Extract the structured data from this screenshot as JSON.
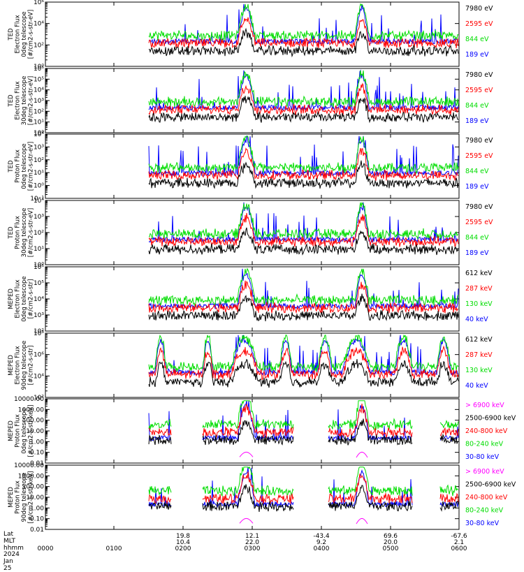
{
  "chart_data": [
    {
      "type": "line",
      "ylabel": [
        "TED",
        "Electron Flux",
        "0deg telescope",
        "[#/cm2-s-str-eV]"
      ],
      "yticks": [
        "10⁰",
        "10²",
        "10⁴",
        "10⁶"
      ],
      "ylim_exp": [
        0,
        6
      ],
      "log": true,
      "series": [
        {
          "name": "7980 eV",
          "color": "#000000"
        },
        {
          "name": "2595 eV",
          "color": "#ff0000"
        },
        {
          "name": "844 eV",
          "color": "#00dd00"
        },
        {
          "name": "189 eV",
          "color": "#0000ff"
        }
      ]
    },
    {
      "type": "line",
      "ylabel": [
        "TED",
        "Electron Flux",
        "30deg telescope",
        "[#/cm2-s-str-eV]"
      ],
      "yticks": [
        "10⁰",
        "10¹",
        "10²",
        "10³",
        "10⁴",
        "10⁵",
        "10⁶"
      ],
      "ylim_exp": [
        0,
        6
      ],
      "log": true,
      "series": [
        {
          "name": "7980 eV",
          "color": "#000000"
        },
        {
          "name": "2595 eV",
          "color": "#ff0000"
        },
        {
          "name": "844 eV",
          "color": "#00dd00"
        },
        {
          "name": "189 eV",
          "color": "#0000ff"
        }
      ]
    },
    {
      "type": "line",
      "ylabel": [
        "TED",
        "Proton Flux",
        "0deg telescope",
        "[#/cm2-s-str-eV]"
      ],
      "yticks": [
        "10⁻¹",
        "10⁰",
        "10¹",
        "10²",
        "10³",
        "10⁴"
      ],
      "ylim_exp": [
        -1,
        4
      ],
      "log": true,
      "series": [
        {
          "name": "7980 eV",
          "color": "#000000"
        },
        {
          "name": "2595 eV",
          "color": "#ff0000"
        },
        {
          "name": "844 eV",
          "color": "#00dd00"
        },
        {
          "name": "189 eV",
          "color": "#0000ff"
        }
      ]
    },
    {
      "type": "line",
      "ylabel": [
        "TED",
        "Proton Flux",
        "30deg telescope",
        "[#/cm2-s-str-eV]"
      ],
      "yticks": [
        "10⁰",
        "10¹",
        "10²",
        "10³",
        "10⁴"
      ],
      "ylim_exp": [
        0,
        4
      ],
      "log": true,
      "series": [
        {
          "name": "7980 eV",
          "color": "#000000"
        },
        {
          "name": "2595 eV",
          "color": "#ff0000"
        },
        {
          "name": "844 eV",
          "color": "#00dd00"
        },
        {
          "name": "189 eV",
          "color": "#0000ff"
        }
      ]
    },
    {
      "type": "line",
      "ylabel": [
        "MEPED",
        "Electron Flux",
        "0deg telescope",
        "[#/cm2-s-str]"
      ],
      "yticks": [
        "10²",
        "10³",
        "10⁴",
        "10⁵",
        "10⁶"
      ],
      "ylim_exp": [
        2,
        6
      ],
      "log": true,
      "series": [
        {
          "name": "612 keV",
          "color": "#000000"
        },
        {
          "name": "287 keV",
          "color": "#ff0000"
        },
        {
          "name": "130 keV",
          "color": "#00dd00"
        },
        {
          "name": "40 keV",
          "color": "#0000ff"
        }
      ]
    },
    {
      "type": "line",
      "ylabel": [
        "MEPED",
        "Electron Flux",
        "90deg telescope",
        "[#/cm2-s-str]"
      ],
      "yticks": [
        "10²",
        "10⁴",
        "10⁶",
        "10⁸"
      ],
      "ylim_exp": [
        2,
        8
      ],
      "log": true,
      "series": [
        {
          "name": "612 keV",
          "color": "#000000"
        },
        {
          "name": "287 keV",
          "color": "#ff0000"
        },
        {
          "name": "130 keV",
          "color": "#00dd00"
        },
        {
          "name": "40 keV",
          "color": "#0000ff"
        }
      ]
    },
    {
      "type": "line",
      "ylabel": [
        "MEPED",
        "Proton Flux",
        "0deg telescope",
        "[#/cm2-s-str-keV]"
      ],
      "yticks": [
        "0.01",
        "0.10",
        "1.00",
        "10.00",
        "100.00",
        "1000.00",
        "10000.00"
      ],
      "ylim_exp": [
        -2,
        4
      ],
      "log": true,
      "series": [
        {
          "name": "> 6900 keV",
          "color": "#ff00ff"
        },
        {
          "name": "2500-6900 keV",
          "color": "#000000"
        },
        {
          "name": "240-800 keV",
          "color": "#ff0000"
        },
        {
          "name": "80-240 keV",
          "color": "#00dd00"
        },
        {
          "name": "30-80 keV",
          "color": "#0000ff"
        }
      ]
    },
    {
      "type": "line",
      "ylabel": [
        "MEPED",
        "Proton Flux",
        "90deg telescope",
        "[#/cm2-s-str-keV]"
      ],
      "yticks": [
        "0.01",
        "0.10",
        "1.00",
        "10.00",
        "100.00",
        "1000.00",
        "10000.00"
      ],
      "ylim_exp": [
        -2,
        4
      ],
      "log": true,
      "series": [
        {
          "name": "> 6900 keV",
          "color": "#ff00ff"
        },
        {
          "name": "2500-6900 keV",
          "color": "#000000"
        },
        {
          "name": "240-800 keV",
          "color": "#ff0000"
        },
        {
          "name": "80-240 keV",
          "color": "#00dd00"
        },
        {
          "name": "30-80 keV",
          "color": "#0000ff"
        }
      ]
    }
  ],
  "footer": {
    "lat_label": "Lat",
    "mlt_label": "MLT",
    "hhmm_label": "hhmm",
    "date": "2024 Jan 25",
    "ticks": [
      {
        "hhmm": "0000",
        "lat": "",
        "mlt": ""
      },
      {
        "hhmm": "0100",
        "lat": "",
        "mlt": ""
      },
      {
        "hhmm": "0200",
        "lat": "19.8",
        "mlt": "10.4"
      },
      {
        "hhmm": "0300",
        "lat": "12.1",
        "mlt": "22.0"
      },
      {
        "hhmm": "0400",
        "lat": "-43.4",
        "mlt": "9.2"
      },
      {
        "hhmm": "0500",
        "lat": "69.6",
        "mlt": "20.0"
      },
      {
        "hhmm": "0600",
        "lat": "-67.6",
        "mlt": "2.1"
      }
    ]
  }
}
